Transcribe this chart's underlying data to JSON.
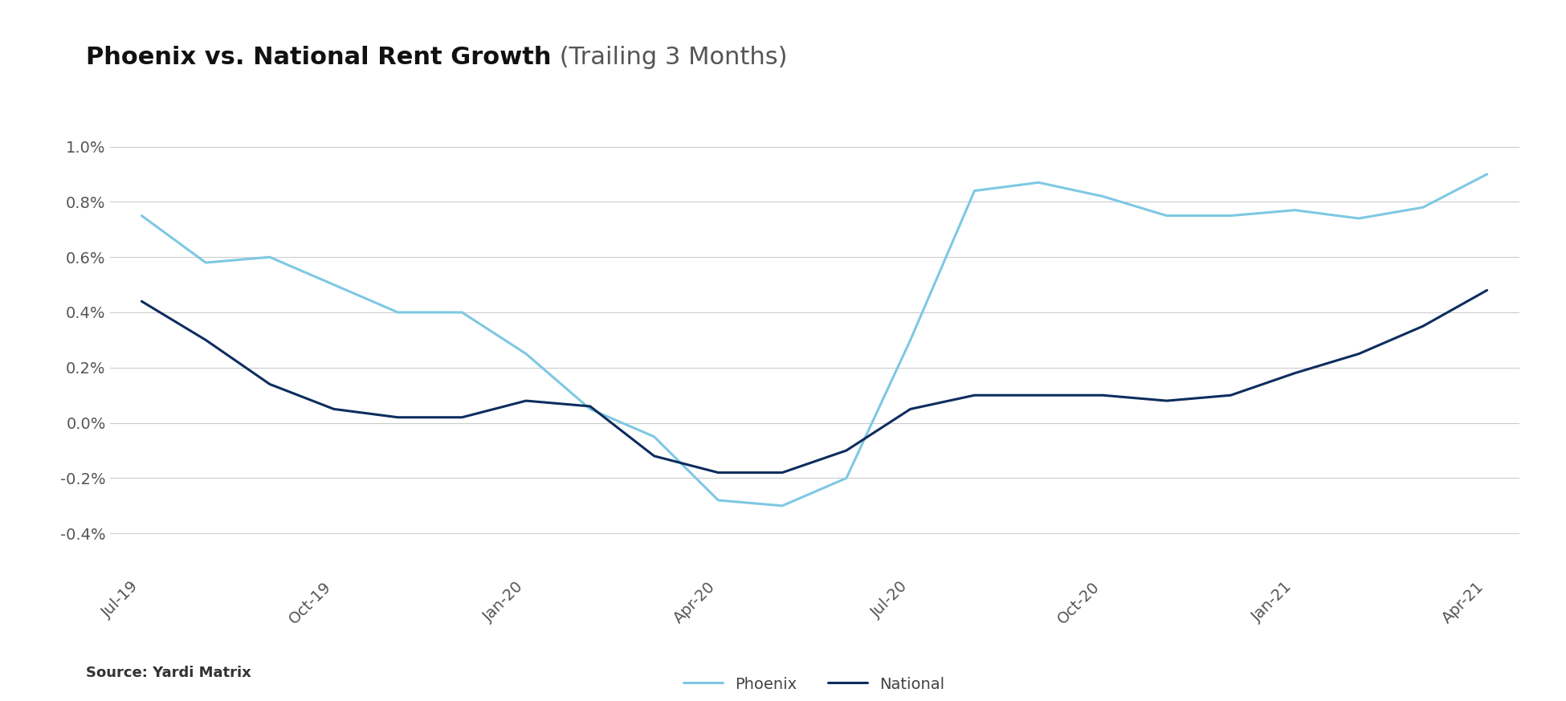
{
  "title_bold": "Phoenix vs. National Rent Growth",
  "title_normal": " (Trailing 3 Months)",
  "source": "Source: Yardi Matrix",
  "phoenix": {
    "x": [
      0,
      1,
      2,
      3,
      4,
      5,
      6,
      7,
      8,
      9,
      10,
      11,
      12,
      13,
      14,
      15,
      16,
      17,
      18,
      19,
      20,
      21
    ],
    "y": [
      0.0075,
      0.0058,
      0.006,
      0.005,
      0.004,
      0.004,
      0.0025,
      0.0005,
      -0.0005,
      -0.0028,
      -0.003,
      -0.002,
      0.003,
      0.0084,
      0.0087,
      0.0082,
      0.0075,
      0.0075,
      0.0077,
      0.0074,
      0.0078,
      0.009
    ],
    "color": "#7EC8E3",
    "linewidth": 2.2,
    "label": "Phoenix"
  },
  "national": {
    "x": [
      0,
      1,
      2,
      3,
      4,
      5,
      6,
      7,
      8,
      9,
      10,
      11,
      12,
      13,
      14,
      15,
      16,
      17,
      18,
      19,
      20,
      21
    ],
    "y": [
      0.0044,
      0.003,
      0.0014,
      0.0005,
      0.0002,
      0.0002,
      0.0008,
      0.0006,
      -0.0012,
      -0.0018,
      -0.0018,
      -0.001,
      0.0005,
      0.001,
      0.001,
      0.001,
      0.0008,
      0.001,
      0.0018,
      0.0025,
      0.0035,
      0.0048
    ],
    "color": "#0D2D5E",
    "linewidth": 2.2,
    "label": "National"
  },
  "x_labels": [
    "Jul-19",
    "Oct-19",
    "Jan-20",
    "Apr-20",
    "Jul-20",
    "Oct-20",
    "Jan-21",
    "Apr-21"
  ],
  "x_tick_positions": [
    0,
    3,
    6,
    9,
    12,
    15,
    18,
    21
  ],
  "ytick_vals": [
    -0.004,
    -0.002,
    0.0,
    0.002,
    0.004,
    0.006,
    0.008,
    0.01
  ],
  "ytick_labels": [
    "-0.4%",
    "-0.2%",
    "0.0%",
    "0.2%",
    "0.4%",
    "0.6%",
    "0.8%",
    "1.0%"
  ],
  "ylim_min": -0.0055,
  "ylim_max": 0.0115,
  "xlim_min": -0.5,
  "xlim_max": 21.5,
  "background_color": "#ffffff",
  "grid_color": "#cccccc",
  "title_fontsize": 22,
  "axis_fontsize": 14
}
